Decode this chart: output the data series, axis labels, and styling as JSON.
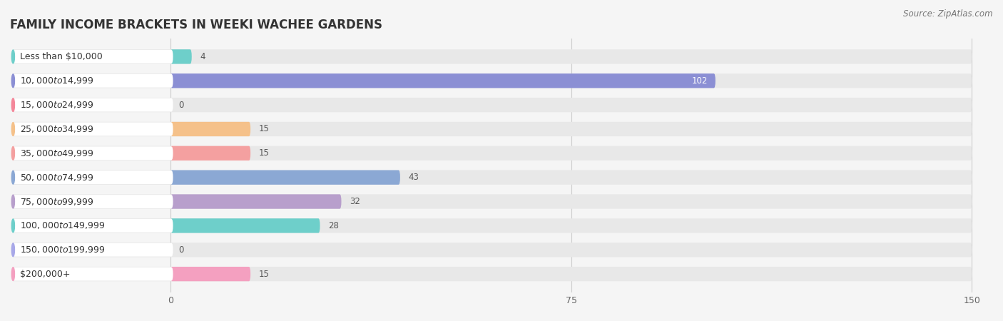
{
  "title": "FAMILY INCOME BRACKETS IN WEEKI WACHEE GARDENS",
  "source": "Source: ZipAtlas.com",
  "categories": [
    "Less than $10,000",
    "$10,000 to $14,999",
    "$15,000 to $24,999",
    "$25,000 to $34,999",
    "$35,000 to $49,999",
    "$50,000 to $74,999",
    "$75,000 to $99,999",
    "$100,000 to $149,999",
    "$150,000 to $199,999",
    "$200,000+"
  ],
  "values": [
    4,
    102,
    0,
    15,
    15,
    43,
    32,
    28,
    0,
    15
  ],
  "bar_colors": [
    "#6ECFCA",
    "#8B8FD4",
    "#F4879A",
    "#F5C18A",
    "#F4A0A0",
    "#8BA8D4",
    "#B89FCC",
    "#6ECFCA",
    "#A8A8E8",
    "#F4A0C0"
  ],
  "xlim": [
    0,
    150
  ],
  "xticks": [
    0,
    75,
    150
  ],
  "background_color": "#f5f5f5",
  "bar_bg_color": "#e8e8e8",
  "title_fontsize": 12,
  "label_fontsize": 9,
  "value_fontsize": 8.5,
  "source_fontsize": 8.5
}
